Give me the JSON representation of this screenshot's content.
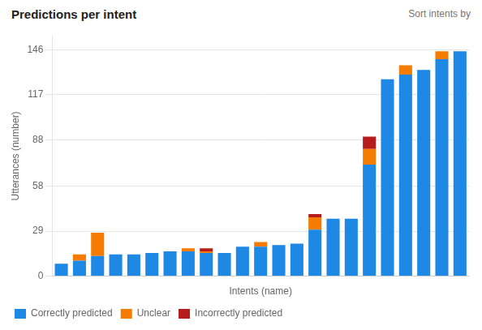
{
  "chart_data": {
    "type": "bar",
    "title": "Predictions per intent",
    "annotations": [
      "Sort intents by"
    ],
    "xlabel": "Intents (name)",
    "ylabel": "Utterances (number)",
    "categories": [
      null,
      null,
      null,
      null,
      null,
      null,
      null,
      null,
      null,
      null,
      null,
      null,
      null,
      null,
      null,
      null,
      null,
      null,
      null,
      null,
      null,
      null,
      null
    ],
    "series": [
      {
        "name": "Correctly predicted",
        "color": "#1E88E5",
        "values": [
          8,
          10,
          13,
          14,
          14,
          15,
          16,
          16,
          15,
          15,
          19,
          19,
          20,
          21,
          30,
          37,
          37,
          72,
          127,
          130,
          133,
          140,
          145
        ]
      },
      {
        "name": "Unclear",
        "color": "#F57C00",
        "values": [
          0,
          4,
          15,
          0,
          0,
          0,
          0,
          2,
          1,
          0,
          0,
          3,
          0,
          0,
          8,
          0,
          0,
          10,
          0,
          6,
          0,
          5,
          0
        ]
      },
      {
        "name": "Incorrectly predicted",
        "color": "#B71C1C",
        "values": [
          0,
          0,
          0,
          0,
          0,
          0,
          0,
          0,
          2,
          0,
          0,
          0,
          0,
          0,
          2,
          0,
          0,
          8,
          0,
          0,
          0,
          0,
          0
        ]
      }
    ],
    "stacked": true,
    "ylim": [
      0,
      155
    ],
    "yticks": [
      0,
      29,
      58,
      88,
      117,
      146
    ],
    "grid": true,
    "legend": "bottom",
    "tick_labels": "y"
  }
}
